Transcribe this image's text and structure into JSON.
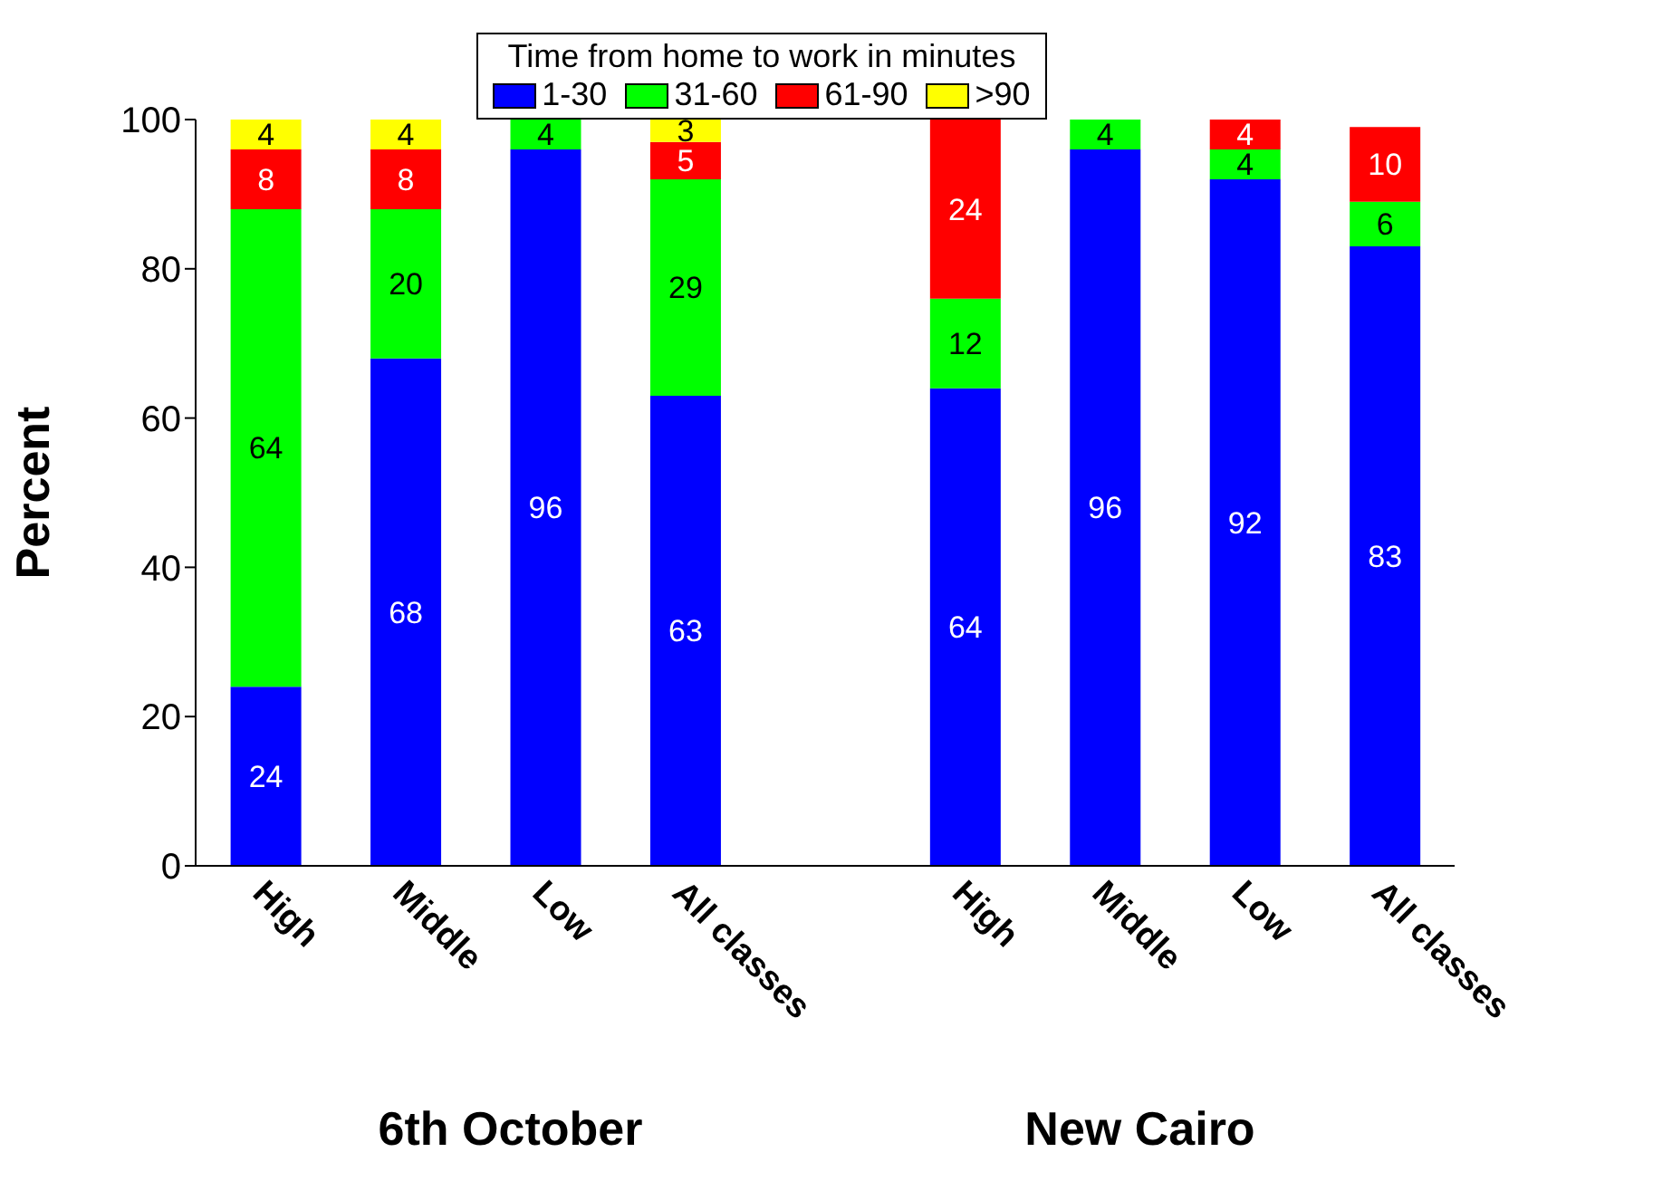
{
  "chart_data": {
    "type": "bar",
    "stacked": true,
    "legend_title": "Time from home to work in minutes",
    "ylabel": "Percent",
    "categories": [
      "High",
      "Middle",
      "Low",
      "All classes",
      null,
      "High",
      "Middle",
      "Low",
      "All classes"
    ],
    "series": [
      {
        "name": "1-30",
        "color": "#0000ff",
        "values": [
          24,
          68,
          96,
          63,
          null,
          64,
          96,
          92,
          83
        ]
      },
      {
        "name": "31-60",
        "color": "#00ff00",
        "values": [
          64,
          20,
          4,
          29,
          null,
          12,
          4,
          4,
          6
        ]
      },
      {
        "name": "61-90",
        "color": "#ff0000",
        "values": [
          8,
          8,
          null,
          5,
          null,
          24,
          null,
          4,
          10
        ]
      },
      {
        "name": ">90",
        "color": "#ffff00",
        "values": [
          4,
          4,
          null,
          3,
          null,
          null,
          null,
          null,
          null
        ]
      }
    ],
    "ylim": [
      0,
      100
    ],
    "yticks": [
      0,
      20,
      40,
      60,
      80,
      100
    ],
    "grid": false,
    "legend": "top",
    "data_labels": true,
    "annotations": [
      "6th October",
      "New Cairo"
    ]
  }
}
